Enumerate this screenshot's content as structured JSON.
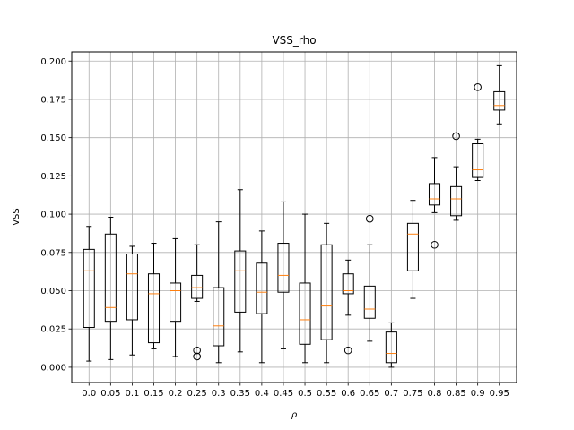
{
  "chart_data": {
    "type": "box",
    "title": "VSS_rho",
    "xlabel": "ρ",
    "ylabel": "VSS",
    "ylim": [
      -0.01,
      0.206
    ],
    "grid": true,
    "categories": [
      "0.0",
      "0.05",
      "0.1",
      "0.15",
      "0.2",
      "0.25",
      "0.3",
      "0.35",
      "0.4",
      "0.45",
      "0.5",
      "0.55",
      "0.6",
      "0.65",
      "0.7",
      "0.75",
      "0.8",
      "0.85",
      "0.9",
      "0.95"
    ],
    "y_ticks": [
      "0.000",
      "0.025",
      "0.050",
      "0.075",
      "0.100",
      "0.125",
      "0.150",
      "0.175",
      "0.200"
    ],
    "boxes": [
      {
        "whisker_low": 0.004,
        "q1": 0.026,
        "median": 0.063,
        "q3": 0.077,
        "whisker_high": 0.092,
        "outliers": []
      },
      {
        "whisker_low": 0.005,
        "q1": 0.03,
        "median": 0.039,
        "q3": 0.087,
        "whisker_high": 0.098,
        "outliers": []
      },
      {
        "whisker_low": 0.008,
        "q1": 0.031,
        "median": 0.061,
        "q3": 0.074,
        "whisker_high": 0.079,
        "outliers": []
      },
      {
        "whisker_low": 0.012,
        "q1": 0.016,
        "median": 0.048,
        "q3": 0.061,
        "whisker_high": 0.081,
        "outliers": []
      },
      {
        "whisker_low": 0.007,
        "q1": 0.03,
        "median": 0.05,
        "q3": 0.055,
        "whisker_high": 0.084,
        "outliers": []
      },
      {
        "whisker_low": 0.043,
        "q1": 0.045,
        "median": 0.052,
        "q3": 0.06,
        "whisker_high": 0.08,
        "outliers": [
          0.011,
          0.007
        ]
      },
      {
        "whisker_low": 0.003,
        "q1": 0.014,
        "median": 0.027,
        "q3": 0.052,
        "whisker_high": 0.095,
        "outliers": []
      },
      {
        "whisker_low": 0.01,
        "q1": 0.036,
        "median": 0.063,
        "q3": 0.076,
        "whisker_high": 0.116,
        "outliers": []
      },
      {
        "whisker_low": 0.003,
        "q1": 0.035,
        "median": 0.049,
        "q3": 0.068,
        "whisker_high": 0.089,
        "outliers": []
      },
      {
        "whisker_low": 0.012,
        "q1": 0.049,
        "median": 0.06,
        "q3": 0.081,
        "whisker_high": 0.108,
        "outliers": []
      },
      {
        "whisker_low": 0.003,
        "q1": 0.015,
        "median": 0.031,
        "q3": 0.055,
        "whisker_high": 0.1,
        "outliers": []
      },
      {
        "whisker_low": 0.003,
        "q1": 0.018,
        "median": 0.04,
        "q3": 0.08,
        "whisker_high": 0.094,
        "outliers": []
      },
      {
        "whisker_low": 0.034,
        "q1": 0.048,
        "median": 0.05,
        "q3": 0.061,
        "whisker_high": 0.07,
        "outliers": [
          0.011
        ]
      },
      {
        "whisker_low": 0.017,
        "q1": 0.032,
        "median": 0.038,
        "q3": 0.053,
        "whisker_high": 0.08,
        "outliers": [
          0.097
        ]
      },
      {
        "whisker_low": 0.0,
        "q1": 0.003,
        "median": 0.009,
        "q3": 0.023,
        "whisker_high": 0.029,
        "outliers": []
      },
      {
        "whisker_low": 0.045,
        "q1": 0.063,
        "median": 0.087,
        "q3": 0.094,
        "whisker_high": 0.109,
        "outliers": []
      },
      {
        "whisker_low": 0.101,
        "q1": 0.106,
        "median": 0.11,
        "q3": 0.12,
        "whisker_high": 0.137,
        "outliers": [
          0.08
        ]
      },
      {
        "whisker_low": 0.096,
        "q1": 0.099,
        "median": 0.11,
        "q3": 0.118,
        "whisker_high": 0.131,
        "outliers": [
          0.151
        ]
      },
      {
        "whisker_low": 0.122,
        "q1": 0.124,
        "median": 0.129,
        "q3": 0.146,
        "whisker_high": 0.149,
        "outliers": [
          0.183
        ]
      },
      {
        "whisker_low": 0.159,
        "q1": 0.168,
        "median": 0.171,
        "q3": 0.18,
        "whisker_high": 0.197,
        "outliers": []
      }
    ],
    "colors": {
      "box": "#000000",
      "median": "#ff7f0e",
      "grid": "#b0b0b0",
      "background": "#ffffff"
    }
  }
}
